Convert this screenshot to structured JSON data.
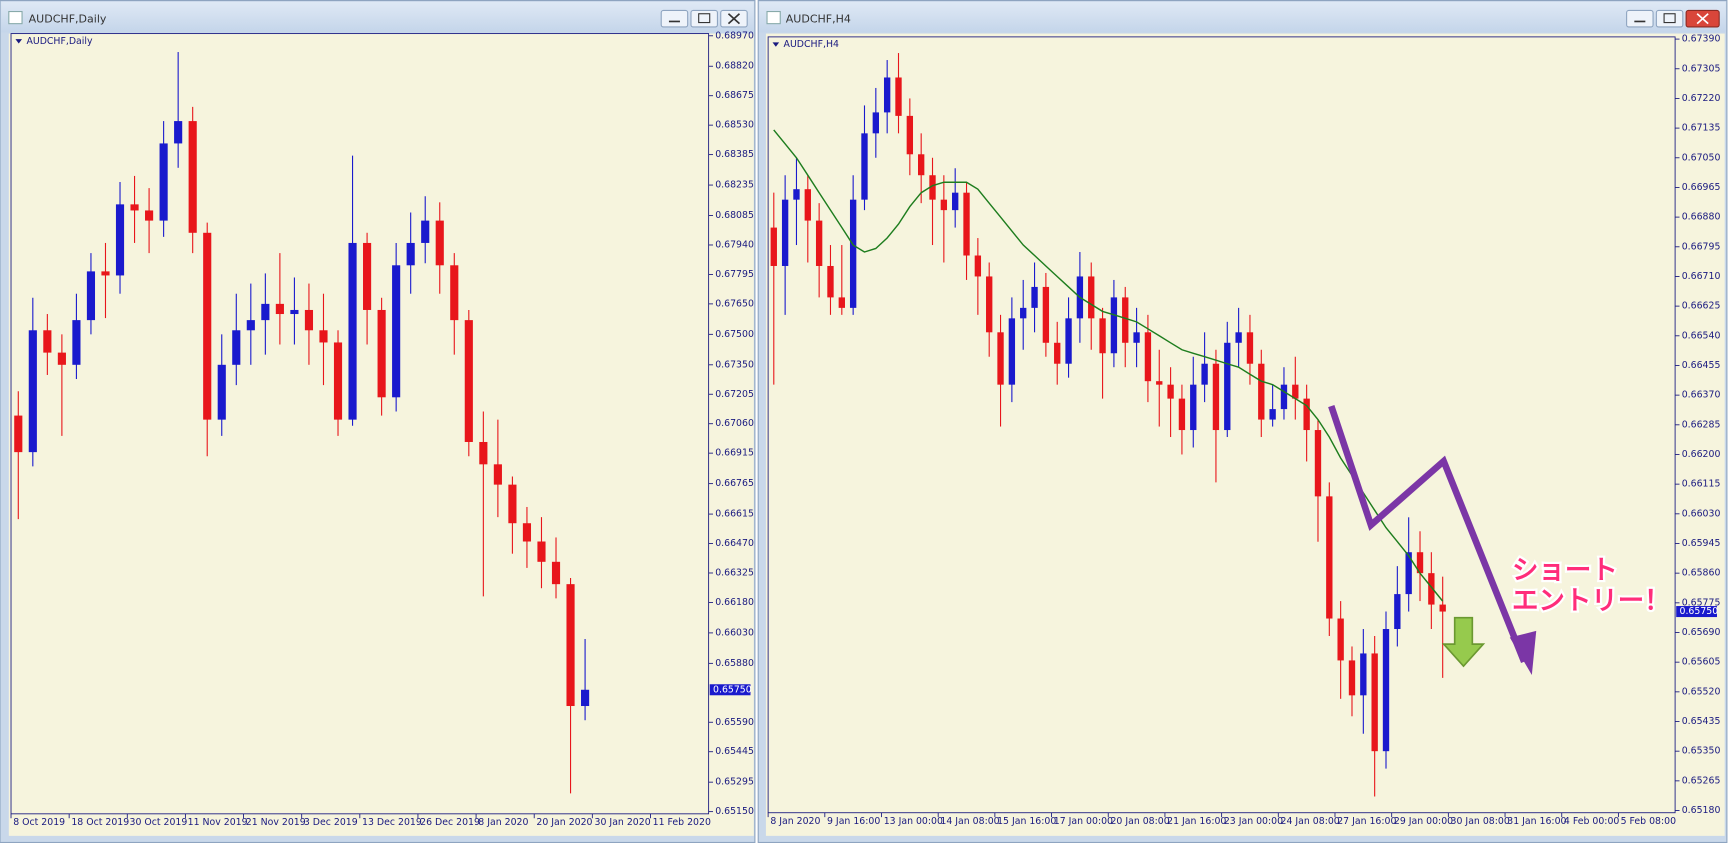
{
  "windows": [
    {
      "title": "AUDCHF,Daily"
    },
    {
      "title": "AUDCHF,H4"
    }
  ],
  "chart_data": [
    {
      "type": "candlestick",
      "title": "AUDCHF,Daily",
      "up_color": "#1a1acd",
      "down_color": "#e8161b",
      "categories": [
        "8 Oct 2019",
        null,
        null,
        null,
        "18 Oct 2019",
        null,
        null,
        null,
        "30 Oct 2019",
        null,
        null,
        null,
        "11 Nov 2019",
        null,
        null,
        null,
        "21 Nov 2019",
        null,
        null,
        null,
        "3 Dec 2019",
        null,
        null,
        null,
        "13 Dec 2019",
        null,
        null,
        null,
        "26 Dec 2019",
        null,
        null,
        null,
        "8 Jan 2020",
        null,
        null,
        null,
        "20 Jan 2020",
        null,
        null,
        null,
        "30 Jan 2020",
        null,
        null,
        null,
        "11 Feb 2020",
        null,
        null,
        null
      ],
      "open": [
        0.671,
        0.6692,
        0.6752,
        0.6741,
        0.6735,
        0.6757,
        0.6781,
        0.6779,
        0.6814,
        0.6811,
        0.6806,
        0.6844,
        0.6855,
        0.68,
        0.6708,
        0.6735,
        0.6752,
        0.6757,
        0.6765,
        0.676,
        0.6762,
        0.6752,
        0.6746,
        0.6708,
        0.6795,
        0.6762,
        0.6719,
        0.6784,
        0.6795,
        0.6806,
        0.6784,
        0.6757,
        0.6697,
        0.6686,
        0.6676,
        0.6657,
        0.6648,
        0.6638,
        0.6627,
        0.6567,
        null,
        null,
        null,
        null,
        null,
        null,
        null,
        null
      ],
      "high": [
        0.6722,
        0.6768,
        0.676,
        0.675,
        0.677,
        0.679,
        0.6795,
        0.6825,
        0.6828,
        0.6822,
        0.6855,
        0.6889,
        0.6862,
        0.6805,
        0.675,
        0.677,
        0.6775,
        0.678,
        0.679,
        0.6778,
        0.6775,
        0.677,
        0.6752,
        0.6838,
        0.68,
        0.6768,
        0.6795,
        0.681,
        0.6818,
        0.6815,
        0.679,
        0.6762,
        0.6712,
        0.6708,
        0.668,
        0.6665,
        0.666,
        0.665,
        0.663,
        0.66,
        null,
        null,
        null,
        null,
        null,
        null,
        null,
        null
      ],
      "low": [
        0.6659,
        0.6685,
        0.673,
        0.67,
        0.6728,
        0.675,
        0.6758,
        0.677,
        0.6795,
        0.679,
        0.6798,
        0.6832,
        0.679,
        0.669,
        0.67,
        0.6725,
        0.6735,
        0.674,
        0.6745,
        0.6745,
        0.6735,
        0.6725,
        0.67,
        0.6705,
        0.6745,
        0.671,
        0.6712,
        0.677,
        0.6785,
        0.677,
        0.674,
        0.669,
        0.6621,
        0.666,
        0.6642,
        0.6635,
        0.6625,
        0.662,
        0.6524,
        0.656,
        null,
        null,
        null,
        null,
        null,
        null,
        null,
        null
      ],
      "close": [
        0.6692,
        0.6752,
        0.6741,
        0.6735,
        0.6757,
        0.6781,
        0.6779,
        0.6814,
        0.6811,
        0.6806,
        0.6844,
        0.6855,
        0.68,
        0.6708,
        0.6735,
        0.6752,
        0.6757,
        0.6765,
        0.676,
        0.6762,
        0.6752,
        0.6746,
        0.6708,
        0.6795,
        0.6762,
        0.6719,
        0.6784,
        0.6795,
        0.6806,
        0.6784,
        0.6757,
        0.6697,
        0.6686,
        0.6676,
        0.6657,
        0.6648,
        0.6638,
        0.6627,
        0.6567,
        0.6575,
        null,
        null,
        null,
        null,
        null,
        null,
        null,
        null
      ],
      "ylim": [
        0.6515,
        0.6897
      ],
      "yticks": [
        {
          "value": 0.6897,
          "label": "0.68970"
        },
        {
          "value": 0.6882,
          "label": "0.68820"
        },
        {
          "value": 0.68675,
          "label": "0.68675"
        },
        {
          "value": 0.6853,
          "label": "0.68530"
        },
        {
          "value": 0.68385,
          "label": "0.68385"
        },
        {
          "value": 0.68235,
          "label": "0.68235"
        },
        {
          "value": 0.68085,
          "label": "0.68085"
        },
        {
          "value": 0.6794,
          "label": "0.67940"
        },
        {
          "value": 0.67795,
          "label": "0.67795"
        },
        {
          "value": 0.6765,
          "label": "0.67650"
        },
        {
          "value": 0.675,
          "label": "0.67500"
        },
        {
          "value": 0.6735,
          "label": "0.67350"
        },
        {
          "value": 0.67205,
          "label": "0.67205"
        },
        {
          "value": 0.6706,
          "label": "0.67060"
        },
        {
          "value": 0.66915,
          "label": "0.66915"
        },
        {
          "value": 0.66765,
          "label": "0.66765"
        },
        {
          "value": 0.66615,
          "label": "0.66615"
        },
        {
          "value": 0.6647,
          "label": "0.66470"
        },
        {
          "value": 0.66325,
          "label": "0.66325"
        },
        {
          "value": 0.6618,
          "label": "0.66180"
        },
        {
          "value": 0.6603,
          "label": "0.66030"
        },
        {
          "value": 0.6588,
          "label": "0.65880"
        },
        {
          "value": 0.6559,
          "label": "0.65590"
        },
        {
          "value": 0.65445,
          "label": "0.65445"
        },
        {
          "value": 0.65295,
          "label": "0.65295"
        },
        {
          "value": 0.6515,
          "label": "0.65150"
        }
      ],
      "current_price": {
        "value": 0.6575,
        "label": "0.65750"
      }
    },
    {
      "type": "candlestick",
      "title": "AUDCHF,H4",
      "up_color": "#1a1acd",
      "down_color": "#e8161b",
      "categories": [
        "8 Jan 2020",
        null,
        null,
        null,
        null,
        "9 Jan 16:00",
        null,
        null,
        null,
        null,
        "13 Jan 00:00",
        null,
        null,
        null,
        null,
        "14 Jan 08:00",
        null,
        null,
        null,
        null,
        "15 Jan 16:00",
        null,
        null,
        null,
        null,
        "17 Jan 00:00",
        null,
        null,
        null,
        null,
        "20 Jan 08:00",
        null,
        null,
        null,
        null,
        "21 Jan 16:00",
        null,
        null,
        null,
        null,
        "23 Jan 00:00",
        null,
        null,
        null,
        null,
        "24 Jan 08:00",
        null,
        null,
        null,
        null,
        "27 Jan 16:00",
        null,
        null,
        null,
        null,
        "29 Jan 00:00",
        null,
        null,
        null,
        null,
        "30 Jan 08:00",
        null,
        null,
        null,
        null,
        "31 Jan 16:00",
        null,
        null,
        null,
        null,
        "4 Feb 00:00",
        null,
        null,
        null,
        null,
        "5 Feb 08:00",
        null,
        null,
        null,
        null
      ],
      "open": [
        0.6685,
        0.6674,
        0.6693,
        0.6696,
        0.6687,
        0.6674,
        0.6665,
        0.6662,
        0.6693,
        0.6712,
        0.6718,
        0.6728,
        0.6717,
        0.6706,
        0.67,
        0.6693,
        0.669,
        0.6695,
        0.6677,
        0.6671,
        0.6655,
        0.664,
        0.6659,
        0.6662,
        0.6668,
        0.6652,
        0.6646,
        0.6659,
        0.6671,
        0.6659,
        0.6649,
        0.6665,
        0.6652,
        0.6655,
        0.6641,
        0.664,
        0.6636,
        0.6627,
        0.664,
        0.6646,
        0.6627,
        0.6652,
        0.6655,
        0.6646,
        0.663,
        0.6633,
        0.664,
        0.6636,
        0.6627,
        0.6608,
        0.6573,
        0.6561,
        0.6551,
        0.6563,
        0.6535,
        0.657,
        0.658,
        0.6592,
        0.6586,
        0.6577,
        null,
        null,
        null,
        null,
        null,
        null,
        null,
        null,
        null,
        null,
        null,
        null,
        null,
        null,
        null,
        null,
        null,
        null,
        null,
        null
      ],
      "high": [
        0.6695,
        0.67,
        0.6705,
        0.67,
        0.6692,
        0.668,
        0.668,
        0.67,
        0.672,
        0.6725,
        0.6733,
        0.6735,
        0.6722,
        0.6712,
        0.6705,
        0.67,
        0.6702,
        0.6698,
        0.6682,
        0.6675,
        0.666,
        0.6665,
        0.667,
        0.6675,
        0.6672,
        0.6658,
        0.6665,
        0.6678,
        0.6675,
        0.6662,
        0.667,
        0.6668,
        0.6662,
        0.666,
        0.665,
        0.6645,
        0.664,
        0.6648,
        0.6655,
        0.665,
        0.6658,
        0.6662,
        0.666,
        0.665,
        0.664,
        0.6645,
        0.6648,
        0.664,
        0.663,
        0.6612,
        0.6578,
        0.6565,
        0.657,
        0.6568,
        0.6575,
        0.6588,
        0.6602,
        0.6598,
        0.6592,
        0.6585,
        null,
        null,
        null,
        null,
        null,
        null,
        null,
        null,
        null,
        null,
        null,
        null,
        null,
        null,
        null,
        null,
        null,
        null,
        null,
        null
      ],
      "low": [
        0.664,
        0.666,
        0.668,
        0.6675,
        0.6665,
        0.666,
        0.666,
        0.666,
        0.669,
        0.6705,
        0.6712,
        0.6712,
        0.67,
        0.6692,
        0.668,
        0.6675,
        0.6685,
        0.667,
        0.666,
        0.6648,
        0.6628,
        0.6635,
        0.665,
        0.6655,
        0.6648,
        0.664,
        0.6642,
        0.6652,
        0.665,
        0.6636,
        0.6645,
        0.6645,
        0.6645,
        0.6635,
        0.6628,
        0.6625,
        0.662,
        0.6622,
        0.6635,
        0.6612,
        0.6625,
        0.6645,
        0.664,
        0.6625,
        0.6628,
        0.663,
        0.663,
        0.6618,
        0.6595,
        0.6568,
        0.655,
        0.6545,
        0.654,
        0.6522,
        0.653,
        0.6565,
        0.6575,
        0.6578,
        0.657,
        0.6556,
        null,
        null,
        null,
        null,
        null,
        null,
        null,
        null,
        null,
        null,
        null,
        null,
        null,
        null,
        null,
        null,
        null,
        null,
        null,
        null
      ],
      "close": [
        0.6674,
        0.6693,
        0.6696,
        0.6687,
        0.6674,
        0.6665,
        0.6662,
        0.6693,
        0.6712,
        0.6718,
        0.6728,
        0.6717,
        0.6706,
        0.67,
        0.6693,
        0.669,
        0.6695,
        0.6677,
        0.6671,
        0.6655,
        0.664,
        0.6659,
        0.6662,
        0.6668,
        0.6652,
        0.6646,
        0.6659,
        0.6671,
        0.6659,
        0.6649,
        0.6665,
        0.6652,
        0.6655,
        0.6641,
        0.664,
        0.6636,
        0.6627,
        0.664,
        0.6646,
        0.6627,
        0.6652,
        0.6655,
        0.6646,
        0.663,
        0.6633,
        0.664,
        0.6636,
        0.6627,
        0.6608,
        0.6573,
        0.6561,
        0.6551,
        0.6563,
        0.6535,
        0.657,
        0.658,
        0.6592,
        0.6586,
        0.6577,
        0.6575,
        null,
        null,
        null,
        null,
        null,
        null,
        null,
        null,
        null,
        null,
        null,
        null,
        null,
        null,
        null,
        null,
        null,
        null,
        null,
        null
      ],
      "ma": {
        "color": "#1e7d1e",
        "values": [
          0.6713,
          0.6709,
          0.6705,
          0.67,
          0.6695,
          0.669,
          0.6685,
          0.668,
          0.6678,
          0.6679,
          0.6682,
          0.6686,
          0.6691,
          0.6695,
          0.6697,
          0.6698,
          0.6698,
          0.6698,
          0.6696,
          0.6692,
          0.6688,
          0.6684,
          0.668,
          0.6677,
          0.6674,
          0.6671,
          0.6668,
          0.6665,
          0.6663,
          0.6661,
          0.666,
          0.6659,
          0.6658,
          0.6656,
          0.6654,
          0.6652,
          0.665,
          0.6649,
          0.6648,
          0.6647,
          0.6646,
          0.6645,
          0.6643,
          0.6641,
          0.664,
          0.6638,
          0.6636,
          0.6634,
          0.663,
          0.6625,
          0.6619,
          0.6614,
          0.6609,
          0.6604,
          0.6599,
          0.6595,
          0.6591,
          0.6586,
          0.6582,
          0.6578,
          null,
          null,
          null,
          null,
          null,
          null,
          null,
          null,
          null,
          null,
          null,
          null,
          null,
          null,
          null,
          null,
          null,
          null,
          null,
          null
        ]
      },
      "ylim": [
        0.6518,
        0.6739
      ],
      "yticks": [
        {
          "value": 0.6739,
          "label": "0.67390"
        },
        {
          "value": 0.67305,
          "label": "0.67305"
        },
        {
          "value": 0.6722,
          "label": "0.67220"
        },
        {
          "value": 0.67135,
          "label": "0.67135"
        },
        {
          "value": 0.6705,
          "label": "0.67050"
        },
        {
          "value": 0.66965,
          "label": "0.66965"
        },
        {
          "value": 0.6688,
          "label": "0.66880"
        },
        {
          "value": 0.66795,
          "label": "0.66795"
        },
        {
          "value": 0.6671,
          "label": "0.66710"
        },
        {
          "value": 0.66625,
          "label": "0.66625"
        },
        {
          "value": 0.6654,
          "label": "0.66540"
        },
        {
          "value": 0.66455,
          "label": "0.66455"
        },
        {
          "value": 0.6637,
          "label": "0.66370"
        },
        {
          "value": 0.66285,
          "label": "0.66285"
        },
        {
          "value": 0.662,
          "label": "0.66200"
        },
        {
          "value": 0.66115,
          "label": "0.66115"
        },
        {
          "value": 0.6603,
          "label": "0.66030"
        },
        {
          "value": 0.65945,
          "label": "0.65945"
        },
        {
          "value": 0.6586,
          "label": "0.65860"
        },
        {
          "value": 0.65775,
          "label": "0.65775"
        },
        {
          "value": 0.6569,
          "label": "0.65690"
        },
        {
          "value": 0.65605,
          "label": "0.65605"
        },
        {
          "value": 0.6552,
          "label": "0.65520"
        },
        {
          "value": 0.65435,
          "label": "0.65435"
        },
        {
          "value": 0.6535,
          "label": "0.65350"
        },
        {
          "value": 0.65265,
          "label": "0.65265"
        },
        {
          "value": 0.6518,
          "label": "0.65180"
        }
      ],
      "current_price": {
        "value": 0.6575,
        "label": "0.65750"
      },
      "annotation": [
        "ショート",
        "エントリー！"
      ]
    }
  ]
}
